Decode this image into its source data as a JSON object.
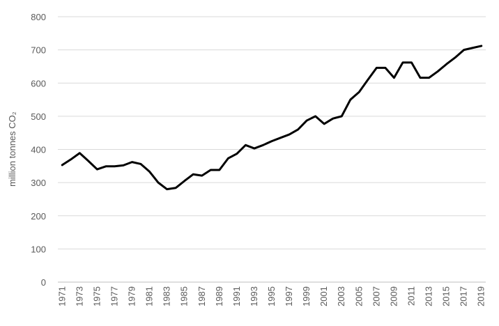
{
  "chart_data": {
    "type": "line",
    "y_label": "million tonnes CO₂",
    "categories": [
      "1971",
      null,
      "1973",
      null,
      "1975",
      null,
      "1977",
      null,
      "1979",
      null,
      "1981",
      null,
      "1983",
      null,
      "1985",
      null,
      "1987",
      null,
      "1989",
      null,
      "1991",
      null,
      "1993",
      null,
      "1995",
      null,
      "1997",
      null,
      "1999",
      null,
      "2001",
      null,
      "2003",
      null,
      "2005",
      null,
      "2007",
      null,
      "2009",
      null,
      "2011",
      null,
      "2013",
      null,
      "2015",
      null,
      "2017",
      null,
      "2019"
    ],
    "values": [
      353,
      370,
      389,
      365,
      340,
      349,
      349,
      352,
      362,
      356,
      333,
      300,
      280,
      284,
      305,
      325,
      321,
      338,
      338,
      373,
      387,
      413,
      403,
      413,
      425,
      435,
      445,
      460,
      487,
      500,
      477,
      493,
      500,
      550,
      573,
      610,
      646,
      646,
      616,
      662,
      662,
      616,
      616,
      635,
      657,
      677,
      700,
      706,
      712
    ],
    "color": "#000000",
    "ylim": [
      0,
      800
    ],
    "yticks": [
      0,
      100,
      200,
      300,
      400,
      500,
      600,
      700,
      800
    ],
    "grid": true
  }
}
